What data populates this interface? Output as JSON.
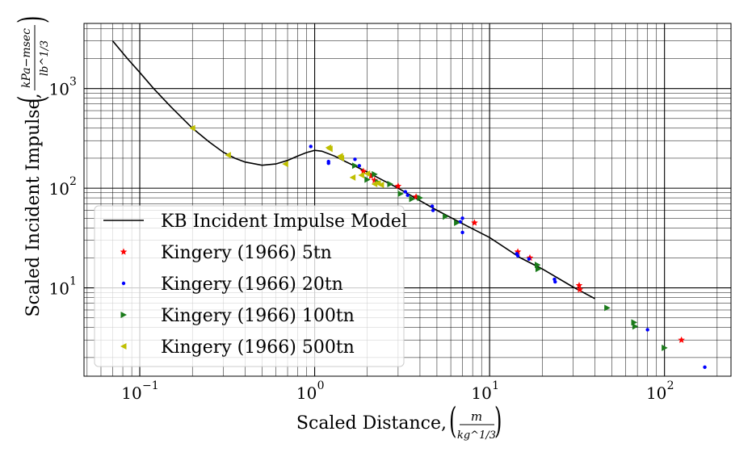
{
  "chart_data": {
    "type": "scatter",
    "title": "",
    "xlabel": "Scaled Distance,",
    "xlabel_unit": {
      "num": "m",
      "den": "kg^1/3"
    },
    "ylabel": "Scaled Incident Impulse,",
    "ylabel_unit": {
      "num": "kPa−msec",
      "den": "lb^1/3"
    },
    "x_scale": "log",
    "y_scale": "log",
    "xlim": [
      0.048,
      240
    ],
    "ylim": [
      1.3,
      4500
    ],
    "grid": "major and minor",
    "legend_position": "lower-left",
    "x_ticks": [
      {
        "value": 0.1,
        "base": "10",
        "exp": "−1"
      },
      {
        "value": 1,
        "base": "10",
        "exp": "0"
      },
      {
        "value": 10,
        "base": "10",
        "exp": "1"
      },
      {
        "value": 100,
        "base": "10",
        "exp": "2"
      }
    ],
    "y_ticks": [
      {
        "value": 10,
        "base": "10",
        "exp": "1"
      },
      {
        "value": 100,
        "base": "10",
        "exp": "2"
      },
      {
        "value": 1000,
        "base": "10",
        "exp": "3"
      }
    ],
    "series": [
      {
        "name": "KB Incident Impulse Model",
        "kind": "line",
        "color": "#000000",
        "x": [
          0.07,
          0.085,
          0.1,
          0.12,
          0.15,
          0.2,
          0.25,
          0.3,
          0.35,
          0.4,
          0.5,
          0.6,
          0.7,
          0.8,
          0.9,
          1.0,
          1.1,
          1.3,
          1.5,
          2,
          2.5,
          3,
          4,
          5,
          7,
          10,
          15,
          20,
          30,
          40
        ],
        "y": [
          3000,
          2000,
          1450,
          1000,
          660,
          400,
          290,
          230,
          200,
          183,
          170,
          175,
          190,
          210,
          228,
          240,
          235,
          210,
          185,
          145,
          118,
          100,
          75,
          60,
          44,
          32,
          20,
          15.5,
          10.2,
          7.8
        ]
      },
      {
        "name": "Kingery (1966) 5tn",
        "kind": "marker",
        "marker": "star",
        "color": "#ff0000",
        "x": [
          1.9,
          2.1,
          2.2,
          3.0,
          3.8,
          8.2,
          14.5,
          17.0,
          32.5,
          32.8,
          125
        ],
        "y": [
          148,
          132,
          120,
          105,
          82,
          45,
          23,
          20,
          10.6,
          9.6,
          3.0
        ]
      },
      {
        "name": "Kingery (1966) 20tn",
        "kind": "marker",
        "marker": "dot",
        "color": "#0000ff",
        "x": [
          0.95,
          1.2,
          1.2,
          1.7,
          1.8,
          3.3,
          3.4,
          4.7,
          4.75,
          6.8,
          7.0,
          7.0,
          14.3,
          14.5,
          16.8,
          23.5,
          23.7,
          80,
          170
        ],
        "y": [
          262,
          185,
          178,
          195,
          168,
          92,
          85,
          66,
          60,
          46,
          50,
          36,
          22,
          21,
          19.5,
          12.2,
          11.5,
          3.8,
          1.6
        ]
      },
      {
        "name": "Kingery (1966) 100tn",
        "kind": "marker",
        "marker": "triangle-right",
        "color": "#1a7a1a",
        "x": [
          1.7,
          2.0,
          2.2,
          2.3,
          2.7,
          3.1,
          3.6,
          4.0,
          5.6,
          6.5,
          18.8,
          19.0,
          47,
          67,
          68,
          100
        ],
        "y": [
          168,
          122,
          138,
          115,
          110,
          88,
          78,
          80,
          52,
          45,
          17,
          15.5,
          6.3,
          4.5,
          4.1,
          2.5
        ]
      },
      {
        "name": "Kingery (1966) 500tn",
        "kind": "marker",
        "marker": "triangle-left",
        "color": "#bfbf00",
        "x": [
          0.2,
          0.32,
          0.68,
          1.2,
          1.22,
          1.4,
          1.42,
          1.65,
          1.85,
          2.0,
          2.2,
          2.3,
          2.4
        ],
        "y": [
          400,
          215,
          175,
          255,
          248,
          210,
          200,
          128,
          135,
          140,
          110,
          112,
          108
        ]
      }
    ]
  }
}
